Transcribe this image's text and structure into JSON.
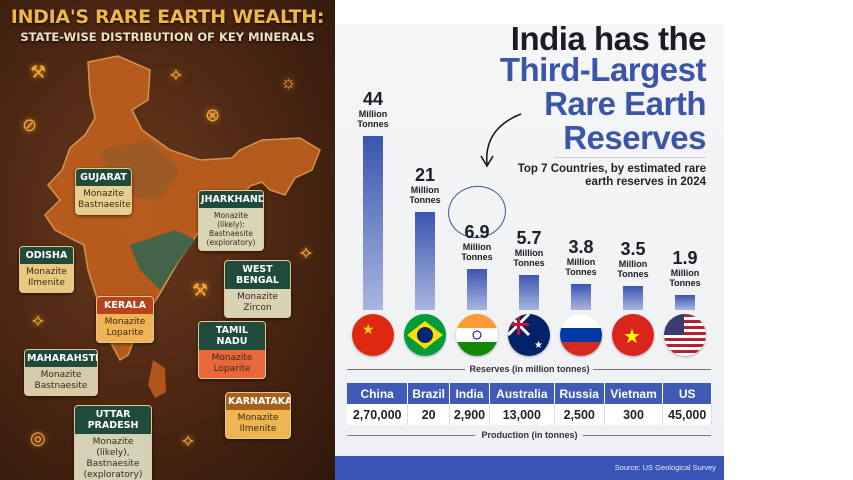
{
  "left_panel": {
    "title": "INDIA'S RARE EARTH WEALTH:",
    "subtitle": "STATE-WISE DISTRIBUTION OF KEY MINERALS",
    "states": [
      {
        "name": "GUJARAT",
        "minerals": "Monazite Bastnaesite"
      },
      {
        "name": "JHARKHAND",
        "minerals": "Monazite (likely): Bastnaesite (exploratory)"
      },
      {
        "name": "ODISHA",
        "minerals": "Monazite Ilmenite"
      },
      {
        "name": "WEST BENGAL",
        "minerals": "Monazite Zircon"
      },
      {
        "name": "KERALA",
        "minerals": "Monazite Loparite"
      },
      {
        "name": "TAMIL NADU",
        "minerals": "Monazite Loparite"
      },
      {
        "name": "MAHARAHSTRA",
        "minerals": "Monazite Bastnaesite"
      },
      {
        "name": "KARNATAKA",
        "minerals": "Monazite Ilmenite"
      },
      {
        "name": "UTTAR PRADESH",
        "minerals": "Monazite (likely), Bastnaesite (exploratory)"
      }
    ],
    "colors": {
      "header_green": "#1f4a3c",
      "accent_gold": "#f0b64a"
    }
  },
  "chart_data": {
    "type": "bar",
    "title": "India has the Third-Largest Rare Earth Reserves",
    "title_line1": "India has the",
    "title_line2": "Third-Largest Rare Earth Reserves",
    "subtitle": "Top 7 Countries, by estimated rare earth reserves in 2024",
    "xlabel": "Reserves (in million tonnes)",
    "unit": "Million Tonnes",
    "categories": [
      "China",
      "Brazil",
      "India",
      "Australia",
      "Russia",
      "Vietnam",
      "US"
    ],
    "values": [
      44,
      21,
      6.9,
      5.7,
      3.8,
      3.5,
      1.9
    ],
    "value_labels": [
      "44",
      "21",
      "6.9",
      "5.7",
      "3.8",
      "3.5",
      "1.9"
    ],
    "highlight": "India",
    "flags": [
      "china-flag",
      "brazil-flag",
      "india-flag",
      "australia-flag",
      "russia-flag",
      "vietnam-flag",
      "us-flag"
    ],
    "table": {
      "label": "Production (in tonnes)",
      "values": [
        "2,70,000",
        "20",
        "2,900",
        "13,000",
        "2,500",
        "300",
        "45,000"
      ]
    },
    "source": "Source: US Geological Survey",
    "colors": {
      "bar": "#3b55b0",
      "accent": "#3b56a8",
      "footer": "#3a54b4"
    }
  }
}
